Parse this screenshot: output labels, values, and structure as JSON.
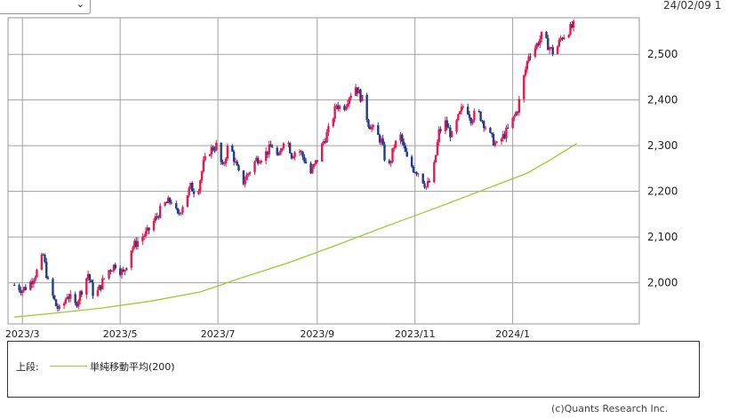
{
  "header": {
    "select_value": "",
    "date_text": "24/02/09 1"
  },
  "chart_data": {
    "type": "candlestick",
    "title": "",
    "x_tick_labels": [
      "2023/3",
      "2023/5",
      "2023/7",
      "2023/9",
      "2023/11",
      "2024/1"
    ],
    "y_tick_labels": [
      "2,000",
      "2,100",
      "2,200",
      "2,300",
      "2,400",
      "2,500"
    ],
    "y_ticks": [
      2000,
      2100,
      2200,
      2300,
      2400,
      2500
    ],
    "ylim": [
      1910,
      2580
    ],
    "xlim": [
      "2023-02-20",
      "2024-03-20"
    ],
    "grid": true,
    "up_color": "#e8184f",
    "down_color": "#233a8f",
    "ma_color": "#9acd32",
    "closes": [
      [
        "2023-02-24",
        1995
      ],
      [
        "2023-03-01",
        1985
      ],
      [
        "2023-03-05",
        1995
      ],
      [
        "2023-03-10",
        2025
      ],
      [
        "2023-03-14",
        2060
      ],
      [
        "2023-03-17",
        2000
      ],
      [
        "2023-03-22",
        1950
      ],
      [
        "2023-03-25",
        1935
      ],
      [
        "2023-03-29",
        1975
      ],
      [
        "2023-04-03",
        1950
      ],
      [
        "2023-04-07",
        1985
      ],
      [
        "2023-04-11",
        2020
      ],
      [
        "2023-04-15",
        1965
      ],
      [
        "2023-04-19",
        1995
      ],
      [
        "2023-04-23",
        2025
      ],
      [
        "2023-04-28",
        2040
      ],
      [
        "2023-05-03",
        2020
      ],
      [
        "2023-05-08",
        2075
      ],
      [
        "2023-05-13",
        2095
      ],
      [
        "2023-05-18",
        2110
      ],
      [
        "2023-05-23",
        2140
      ],
      [
        "2023-05-28",
        2170
      ],
      [
        "2023-06-02",
        2180
      ],
      [
        "2023-06-06",
        2145
      ],
      [
        "2023-06-10",
        2180
      ],
      [
        "2023-06-14",
        2210
      ],
      [
        "2023-06-18",
        2195
      ],
      [
        "2023-06-22",
        2260
      ],
      [
        "2023-06-26",
        2290
      ],
      [
        "2023-06-30",
        2300
      ],
      [
        "2023-07-04",
        2250
      ],
      [
        "2023-07-08",
        2310
      ],
      [
        "2023-07-12",
        2260
      ],
      [
        "2023-07-16",
        2215
      ],
      [
        "2023-07-20",
        2240
      ],
      [
        "2023-07-25",
        2270
      ],
      [
        "2023-07-30",
        2280
      ],
      [
        "2023-08-04",
        2300
      ],
      [
        "2023-08-08",
        2270
      ],
      [
        "2023-08-12",
        2330
      ],
      [
        "2023-08-16",
        2280
      ],
      [
        "2023-08-20",
        2295
      ],
      [
        "2023-08-24",
        2270
      ],
      [
        "2023-08-28",
        2240
      ],
      [
        "2023-09-01",
        2270
      ],
      [
        "2023-09-05",
        2310
      ],
      [
        "2023-09-09",
        2340
      ],
      [
        "2023-09-13",
        2390
      ],
      [
        "2023-09-17",
        2380
      ],
      [
        "2023-09-21",
        2410
      ],
      [
        "2023-09-25",
        2430
      ],
      [
        "2023-09-29",
        2400
      ],
      [
        "2023-10-03",
        2350
      ],
      [
        "2023-10-07",
        2330
      ],
      [
        "2023-10-11",
        2310
      ],
      [
        "2023-10-15",
        2240
      ],
      [
        "2023-10-19",
        2300
      ],
      [
        "2023-10-23",
        2320
      ],
      [
        "2023-10-27",
        2270
      ],
      [
        "2023-10-31",
        2250
      ],
      [
        "2023-11-04",
        2240
      ],
      [
        "2023-11-08",
        2210
      ],
      [
        "2023-11-12",
        2230
      ],
      [
        "2023-11-16",
        2330
      ],
      [
        "2023-11-20",
        2350
      ],
      [
        "2023-11-24",
        2320
      ],
      [
        "2023-11-28",
        2360
      ],
      [
        "2023-12-02",
        2395
      ],
      [
        "2023-12-06",
        2360
      ],
      [
        "2023-12-10",
        2375
      ],
      [
        "2023-12-14",
        2350
      ],
      [
        "2023-12-18",
        2320
      ],
      [
        "2023-12-22",
        2300
      ],
      [
        "2023-12-26",
        2320
      ],
      [
        "2023-12-30",
        2340
      ],
      [
        "2024-01-04",
        2380
      ],
      [
        "2024-01-08",
        2450
      ],
      [
        "2024-01-11",
        2500
      ],
      [
        "2024-01-15",
        2515
      ],
      [
        "2024-01-19",
        2540
      ],
      [
        "2024-01-23",
        2520
      ],
      [
        "2024-01-27",
        2500
      ],
      [
        "2024-01-31",
        2535
      ],
      [
        "2024-02-04",
        2550
      ],
      [
        "2024-02-09",
        2565
      ]
    ],
    "moving_average": {
      "name": "単純移動平均(200)",
      "points": [
        [
          "2023-02-24",
          1925
        ],
        [
          "2023-03-25",
          1935
        ],
        [
          "2023-04-20",
          1945
        ],
        [
          "2023-05-20",
          1960
        ],
        [
          "2023-06-20",
          1980
        ],
        [
          "2023-07-15",
          2010
        ],
        [
          "2023-08-15",
          2045
        ],
        [
          "2023-09-15",
          2085
        ],
        [
          "2023-10-15",
          2125
        ],
        [
          "2023-11-15",
          2165
        ],
        [
          "2023-12-15",
          2205
        ],
        [
          "2024-01-10",
          2240
        ],
        [
          "2024-01-25",
          2270
        ],
        [
          "2024-02-10",
          2305
        ]
      ]
    }
  },
  "legend": {
    "prefix": "上段:",
    "ma_label": "単純移動平均(200)"
  },
  "footer": {
    "copyright": "(c)Quants Research Inc."
  }
}
